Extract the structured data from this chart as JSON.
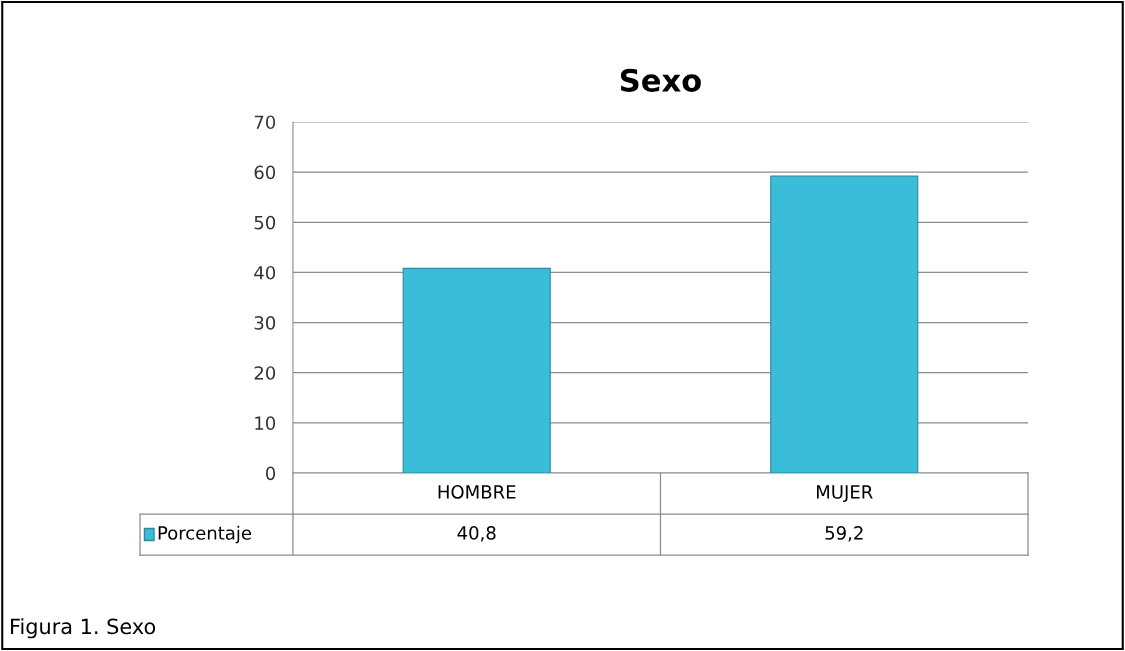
{
  "chart_data": {
    "type": "bar",
    "title": "Sexo",
    "categories": [
      "HOMBRE",
      "MUJER"
    ],
    "series": [
      {
        "name": "Porcentaje",
        "color": "#3bbcd9",
        "values": [
          40.8,
          59.2
        ],
        "value_labels": [
          "40,8",
          "59,2"
        ]
      }
    ],
    "ylim": [
      0,
      70
    ],
    "yticks": [
      0,
      10,
      20,
      30,
      40,
      50,
      60,
      70
    ],
    "grid": "y",
    "legend": "bottom",
    "annotations": [
      "Figura 1. Sexo"
    ]
  }
}
